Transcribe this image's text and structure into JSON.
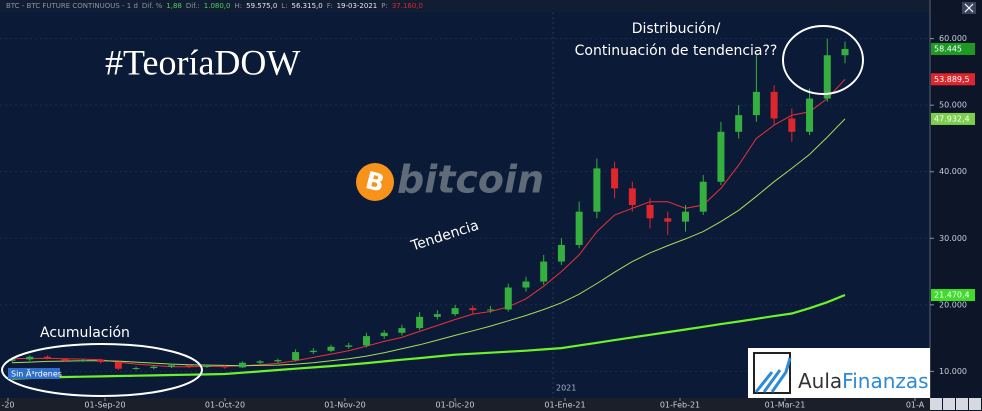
{
  "chart_data": {
    "type": "candlestick",
    "header": [
      "BTC - BTC FUTURE CONTINUOUS - 1 d",
      "Dif. %",
      "1,88",
      "Dif.:",
      "1.080,0",
      "H:",
      "59.575,0",
      "L:",
      "56.315,0",
      "F:",
      "19-03-2021",
      "P:",
      "37.160,0"
    ],
    "title": "#TeoríaDOW",
    "annotations": {
      "distribution": "Distribución/",
      "continuation": "Continuación de tendencia??",
      "trend": "Tendencia",
      "accumulation": "Acumulación",
      "orders": "Sin Ã³rdenes",
      "year": "2021"
    },
    "logo": {
      "symbol": "B",
      "text": "bitcoin"
    },
    "brand": {
      "part1": "Aula",
      "part2": "Finanzas"
    },
    "x_labels": [
      "-20",
      "01-Sep-20",
      "01-Oct-20",
      "01-Nov-20",
      "01-Dic-20",
      "01-Ene-21",
      "01-Feb-21",
      "01-Mar-21",
      "01-A"
    ],
    "candles": {
      "up_color": "#35b040",
      "down_color": "#e0262d",
      "open": [
        11600,
        11800,
        12200,
        11900,
        11600,
        11700,
        11400,
        10400,
        10500,
        10700,
        10900,
        10700,
        10800,
        10600,
        11300,
        11500,
        11700,
        12900,
        13100,
        13700,
        13900,
        15300,
        15800,
        16500,
        18200,
        18600,
        19500,
        19200,
        19300,
        22600,
        23500,
        26500,
        29000,
        34000,
        40500,
        37500,
        35000,
        33000,
        32500,
        34000,
        38500,
        46000,
        48500,
        52000,
        48000,
        46000,
        51000,
        57500
      ],
      "high": [
        12100,
        12400,
        12400,
        12000,
        11900,
        11900,
        11500,
        10700,
        10900,
        11100,
        11000,
        10950,
        10900,
        11500,
        11700,
        11900,
        13300,
        13500,
        14000,
        14300,
        15800,
        16200,
        17000,
        18900,
        19200,
        20000,
        19900,
        19800,
        23200,
        24200,
        27500,
        30000,
        35500,
        42000,
        41500,
        38500,
        36000,
        34000,
        35000,
        39500,
        47500,
        50000,
        57500,
        53000,
        49500,
        52500,
        60000,
        59575
      ],
      "low": [
        11400,
        11600,
        11800,
        11500,
        11400,
        11200,
        10200,
        10200,
        10300,
        10500,
        10500,
        10500,
        10400,
        10500,
        11100,
        11300,
        11500,
        12600,
        12900,
        13400,
        13600,
        14900,
        15400,
        16200,
        17800,
        18300,
        18700,
        18800,
        19000,
        22000,
        23000,
        26000,
        28500,
        33000,
        36000,
        34000,
        31500,
        30500,
        31000,
        33500,
        38000,
        45000,
        47500,
        47000,
        44500,
        45500,
        50500,
        56315
      ],
      "close": [
        11800,
        12200,
        11900,
        11600,
        11700,
        11400,
        10400,
        10500,
        10700,
        10900,
        10700,
        10800,
        10600,
        11300,
        11500,
        11700,
        12900,
        13100,
        13700,
        13900,
        15300,
        15800,
        16500,
        18200,
        18600,
        19500,
        19200,
        19300,
        22600,
        23500,
        26500,
        29000,
        34000,
        40500,
        37500,
        35000,
        33000,
        32500,
        34000,
        38500,
        46000,
        48500,
        52000,
        48000,
        46000,
        51000,
        57500,
        58445
      ]
    },
    "series": [
      {
        "color": "#e8333a",
        "width": 1,
        "values": [
          11900,
          11950,
          11950,
          11900,
          11850,
          11750,
          11400,
          11100,
          10900,
          10700,
          10700,
          10750,
          10750,
          10850,
          11000,
          11200,
          11600,
          12100,
          12600,
          13100,
          13800,
          14500,
          15100,
          16000,
          16900,
          17800,
          18600,
          19000,
          19700,
          20900,
          22800,
          25000,
          27500,
          31000,
          33500,
          34500,
          35500,
          35500,
          34500,
          35000,
          37500,
          41000,
          45000,
          47000,
          48500,
          49000,
          51000,
          53889.5
        ]
      },
      {
        "color": "#a8dc5a",
        "width": 1,
        "values": [
          11300,
          11400,
          11500,
          11550,
          11600,
          11600,
          11550,
          11400,
          11250,
          11100,
          11000,
          10950,
          10900,
          10850,
          10900,
          10950,
          11100,
          11300,
          11600,
          11900,
          12300,
          12800,
          13400,
          14000,
          14700,
          15400,
          16100,
          16800,
          17600,
          18400,
          19300,
          20300,
          21600,
          23200,
          24900,
          26500,
          27800,
          28900,
          29900,
          31000,
          32500,
          34200,
          36300,
          38500,
          40500,
          42600,
          45200,
          47932.4
        ]
      },
      {
        "color": "#6cf22a",
        "width": 2.2,
        "values": [
          8900,
          9000,
          9100,
          9150,
          9200,
          9250,
          9300,
          9350,
          9400,
          9450,
          9500,
          9550,
          9600,
          9800,
          10000,
          10200,
          10400,
          10600,
          10800,
          11000,
          11250,
          11500,
          11750,
          12000,
          12250,
          12500,
          12650,
          12800,
          12950,
          13100,
          13300,
          13500,
          13900,
          14300,
          14700,
          15100,
          15500,
          15900,
          16300,
          16700,
          17100,
          17500,
          17900,
          18300,
          18700,
          19500,
          20400,
          21470.4
        ]
      }
    ],
    "price_tags": [
      {
        "value": 58445,
        "label": "58.445",
        "color": "#1c9a23"
      },
      {
        "value": 53889.5,
        "label": "53.889,5",
        "color": "#e0262d"
      },
      {
        "value": 47932.4,
        "label": "47.932,4",
        "color": "#7ccf4a"
      },
      {
        "value": 21470.4,
        "label": "21.470,4",
        "color": "#3fdc2c"
      }
    ],
    "ylim": [
      6000,
      64000
    ],
    "yticks": [
      {
        "value": 10000,
        "label": "10.000"
      },
      {
        "value": 20000,
        "label": "20.000"
      },
      {
        "value": 30000,
        "label": "30.000"
      },
      {
        "value": 40000,
        "label": "40.000"
      },
      {
        "value": 50000,
        "label": "50.000"
      },
      {
        "value": 60000,
        "label": "60.000"
      }
    ],
    "grid": true
  }
}
